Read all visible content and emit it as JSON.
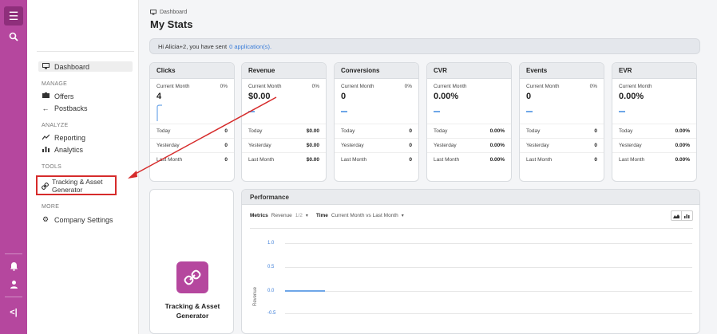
{
  "rail": {
    "icons": [
      "menu-icon",
      "search-icon",
      "bell-icon",
      "user-icon",
      "collapse-icon"
    ],
    "accent": "#b5479e"
  },
  "sidebar": {
    "items": [
      {
        "label": "Dashboard",
        "icon": "monitor-icon"
      },
      {
        "label": "Offers",
        "icon": "offers-icon"
      },
      {
        "label": "Postbacks",
        "icon": "postback-icon"
      },
      {
        "label": "Reporting",
        "icon": "reporting-icon"
      },
      {
        "label": "Analytics",
        "icon": "analytics-icon"
      },
      {
        "label": "Tracking & Asset Generator",
        "icon": "link-icon"
      },
      {
        "label": "Company Settings",
        "icon": "gear-icon"
      }
    ],
    "sections": {
      "manage": "MANAGE",
      "analyze": "ANALYZE",
      "tools": "TOOLS",
      "more": "MORE"
    },
    "tracking_line1": "Tracking & Asset",
    "tracking_line2": "Generator"
  },
  "header": {
    "breadcrumb": "Dashboard",
    "title": "My Stats"
  },
  "banner": {
    "text": "Hi Alicia+2, you have sent",
    "link": "0 application(s)."
  },
  "stats": [
    {
      "title": "Clicks",
      "period": "Current Month",
      "pct": "0%",
      "value": "4",
      "today": "0",
      "yesterday": "0",
      "last_month": "0"
    },
    {
      "title": "Revenue",
      "period": "Current Month",
      "pct": "0%",
      "value": "$0.00",
      "today": "$0.00",
      "yesterday": "$0.00",
      "last_month": "$0.00"
    },
    {
      "title": "Conversions",
      "period": "Current Month",
      "pct": "0%",
      "value": "0",
      "today": "0",
      "yesterday": "0",
      "last_month": "0"
    },
    {
      "title": "CVR",
      "period": "Current Month",
      "pct": "",
      "value": "0.00%",
      "today": "0.00%",
      "yesterday": "0.00%",
      "last_month": "0.00%"
    },
    {
      "title": "Events",
      "period": "Current Month",
      "pct": "0%",
      "value": "0",
      "today": "0",
      "yesterday": "0",
      "last_month": "0"
    },
    {
      "title": "EVR",
      "period": "Current Month",
      "pct": "",
      "value": "0.00%",
      "today": "0.00%",
      "yesterday": "0.00%",
      "last_month": "0.00%"
    }
  ],
  "row_labels": {
    "today": "Today",
    "yesterday": "Yesterday",
    "last_month": "Last Month"
  },
  "tool_card": {
    "line1": "Tracking & Asset",
    "line2": "Generator"
  },
  "performance": {
    "title": "Performance",
    "metrics_label": "Metrics",
    "metrics_value": "Revenue",
    "metrics_count": "1/2",
    "time_label": "Time",
    "time_value": "Current Month vs Last Month",
    "y_axis_title": "Revenue",
    "y_ticks": [
      "1.0",
      "0.5",
      "0.0",
      "-0.5"
    ]
  }
}
